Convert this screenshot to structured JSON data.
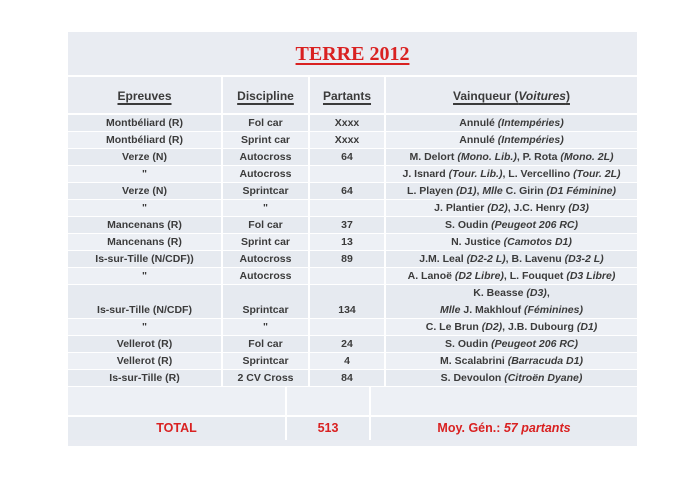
{
  "colors": {
    "table_bg": "#e9ecf2",
    "row_dark": "#e6eaf0",
    "row_light": "#edf0f5",
    "gap_band": "#edf0f5",
    "total_band": "#e7ebf1",
    "separator": "#ffffff",
    "text": "#3b3b3b",
    "accent_red": "#d92121"
  },
  "title": "TERRE 2012",
  "table": {
    "headers": {
      "epreuves": "Epreuves",
      "discipline": "Discipline",
      "partants": "Partants",
      "vainqueur_segments": [
        {
          "t": "Vainqueur ("
        },
        {
          "t": "Voitures",
          "i": true
        },
        {
          "t": ")"
        }
      ]
    },
    "rows": [
      {
        "epreuve": "Montbéliard (R)",
        "discipline": "Fol car",
        "partants": "Xxxx",
        "vainqueur": [
          {
            "t": "Annulé "
          },
          {
            "t": "(Intempéries)",
            "i": true
          }
        ]
      },
      {
        "epreuve": "Montbéliard (R)",
        "discipline": "Sprint car",
        "partants": "Xxxx",
        "vainqueur": [
          {
            "t": "Annulé "
          },
          {
            "t": "(Intempéries)",
            "i": true
          }
        ]
      },
      {
        "epreuve": "Verze (N)",
        "discipline": "Autocross",
        "partants": "64",
        "vainqueur": [
          {
            "t": "M. Delort "
          },
          {
            "t": "(Mono. Lib.)",
            "i": true
          },
          {
            "t": ", P. Rota "
          },
          {
            "t": "(Mono. 2L)",
            "i": true
          }
        ]
      },
      {
        "epreuve": "\"",
        "discipline": "Autocross",
        "partants": "",
        "vainqueur": [
          {
            "t": "J. Isnard "
          },
          {
            "t": "(Tour. Lib.)",
            "i": true
          },
          {
            "t": ", L. Vercellino "
          },
          {
            "t": "(Tour. 2L)",
            "i": true
          }
        ]
      },
      {
        "epreuve": "Verze (N)",
        "discipline": "Sprintcar",
        "partants": "64",
        "vainqueur": [
          {
            "t": "L. Playen "
          },
          {
            "t": "(D1)",
            "i": true
          },
          {
            "t": ", "
          },
          {
            "t": "Mlle",
            "i": true
          },
          {
            "t": " C. Girin "
          },
          {
            "t": "(D1 Féminine)",
            "i": true
          }
        ]
      },
      {
        "epreuve": "\"",
        "discipline": "\"",
        "partants": "",
        "vainqueur": [
          {
            "t": "J. Plantier "
          },
          {
            "t": "(D2)",
            "i": true
          },
          {
            "t": ", J.C. Henry "
          },
          {
            "t": "(D3)",
            "i": true
          }
        ]
      },
      {
        "epreuve": "Mancenans (R)",
        "discipline": "Fol car",
        "partants": "37",
        "vainqueur": [
          {
            "t": "S. Oudin "
          },
          {
            "t": "(Peugeot 206 RC)",
            "i": true
          }
        ]
      },
      {
        "epreuve": "Mancenans (R)",
        "discipline": "Sprint car",
        "partants": "13",
        "vainqueur": [
          {
            "t": "N. Justice "
          },
          {
            "t": "(Camotos D1)",
            "i": true
          }
        ]
      },
      {
        "epreuve": "Is-sur-Tille (N/CDF))",
        "discipline": "Autocross",
        "partants": "89",
        "vainqueur": [
          {
            "t": "J.M. Leal "
          },
          {
            "t": "(D2-2 L)",
            "i": true
          },
          {
            "t": ", B. Lavenu "
          },
          {
            "t": "(D3-2 L)",
            "i": true
          }
        ]
      },
      {
        "epreuve": "\"",
        "discipline": "Autocross",
        "partants": "",
        "vainqueur": [
          {
            "t": "A. Lanoë "
          },
          {
            "t": "(D2 Libre)",
            "i": true
          },
          {
            "t": ", L. Fouquet "
          },
          {
            "t": "(D3 Libre)",
            "i": true
          }
        ]
      },
      {
        "epreuve": "Is-sur-Tille (N/CDF)",
        "discipline": "Sprintcar",
        "partants": "134",
        "tall": true,
        "vainqueur": [
          {
            "t": "K. Beasse "
          },
          {
            "t": "(D3)",
            "i": true
          },
          {
            "t": ","
          },
          {
            "br": true
          },
          {
            "t": "Mlle",
            "i": true
          },
          {
            "t": " J. Makhlouf "
          },
          {
            "t": "(Féminines)",
            "i": true
          }
        ]
      },
      {
        "epreuve": "\"",
        "discipline": "\"",
        "partants": "",
        "vainqueur": [
          {
            "t": "C. Le Brun "
          },
          {
            "t": "(D2)",
            "i": true
          },
          {
            "t": ", J.B. Dubourg "
          },
          {
            "t": "(D1)",
            "i": true
          }
        ]
      },
      {
        "epreuve": "Vellerot (R)",
        "discipline": "Fol car",
        "partants": "24",
        "vainqueur": [
          {
            "t": "S. Oudin "
          },
          {
            "t": "(Peugeot 206 RC)",
            "i": true
          }
        ]
      },
      {
        "epreuve": "Vellerot (R)",
        "discipline": "Sprintcar",
        "partants": "4",
        "vainqueur": [
          {
            "t": "M. Scalabrini "
          },
          {
            "t": "(Barracuda D1)",
            "i": true
          }
        ]
      },
      {
        "epreuve": "Is-sur-Tille (R)",
        "discipline": "2 CV Cross",
        "partants": "84",
        "vainqueur": [
          {
            "t": "S. Devoulon "
          },
          {
            "t": "(Citroën Dyane)",
            "i": true
          }
        ]
      }
    ],
    "total": {
      "label": "TOTAL",
      "partants": "513",
      "moyenne_segments": [
        {
          "t": "Moy. Gén.: "
        },
        {
          "t": "57 partants",
          "i": true
        }
      ]
    }
  }
}
